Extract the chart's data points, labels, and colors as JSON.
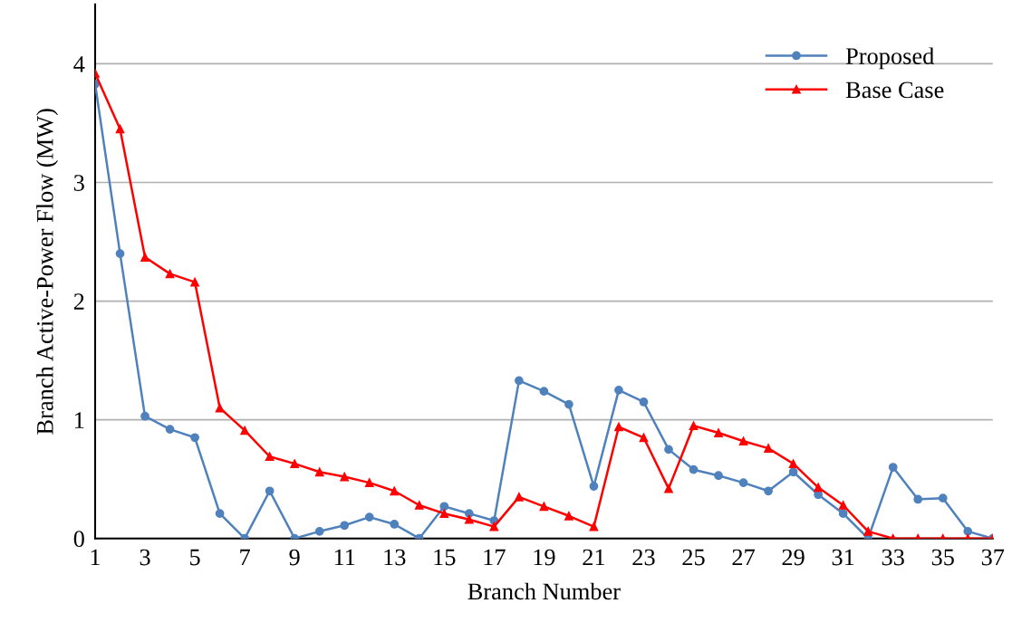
{
  "chart_data": {
    "type": "line",
    "xlabel": "Branch Number",
    "ylabel": "Branch Active-Power Flow (MW)",
    "x": [
      1,
      2,
      3,
      4,
      5,
      6,
      7,
      8,
      9,
      10,
      11,
      12,
      13,
      14,
      15,
      16,
      17,
      18,
      19,
      20,
      21,
      22,
      23,
      24,
      25,
      26,
      27,
      28,
      29,
      30,
      31,
      32,
      33,
      34,
      35,
      36,
      37
    ],
    "xlim": [
      1,
      37
    ],
    "xticks": [
      1,
      3,
      5,
      7,
      9,
      11,
      13,
      15,
      17,
      19,
      21,
      23,
      25,
      27,
      29,
      31,
      33,
      35,
      37
    ],
    "ylim": [
      0,
      4.5
    ],
    "yticks": [
      0,
      1,
      2,
      3,
      4
    ],
    "grid": "y",
    "legend": "top right",
    "line_style": "solid",
    "series": [
      {
        "name": "Proposed",
        "color": "#4f81bd",
        "marker": "circle",
        "values": [
          3.83,
          2.4,
          1.03,
          0.92,
          0.85,
          0.21,
          0,
          0.4,
          0,
          0.06,
          0.11,
          0.18,
          0.12,
          0,
          0.27,
          0.21,
          0.15,
          1.33,
          1.24,
          1.13,
          0.44,
          1.25,
          1.15,
          0.75,
          0.58,
          0.53,
          0.47,
          0.4,
          0.56,
          0.37,
          0.21,
          0,
          0.6,
          0.33,
          0.34,
          0.06,
          0
        ]
      },
      {
        "name": "Base Case",
        "color": "#ff0000",
        "marker": "triangle",
        "values": [
          3.92,
          3.45,
          2.37,
          2.23,
          2.16,
          1.1,
          0.91,
          0.69,
          0.63,
          0.56,
          0.52,
          0.47,
          0.4,
          0.28,
          0.21,
          0.16,
          0.1,
          0.35,
          0.27,
          0.19,
          0.1,
          0.94,
          0.85,
          0.42,
          0.95,
          0.89,
          0.82,
          0.76,
          0.63,
          0.43,
          0.28,
          0.06,
          0,
          0,
          0,
          0,
          0
        ]
      }
    ]
  }
}
